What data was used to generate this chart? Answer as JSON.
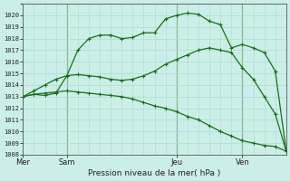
{
  "background_color": "#cceee8",
  "grid_color": "#aaddcc",
  "line_color": "#1a6e1a",
  "xlabel": "Pression niveau de la mer( hPa )",
  "ylim": [
    1008,
    1021
  ],
  "ytick_min": 1008,
  "ytick_max": 1020,
  "n_points": 25,
  "series1": [
    1013.0,
    1013.2,
    1013.1,
    1013.3,
    1014.8,
    1017.0,
    1018.0,
    1018.3,
    1018.3,
    1018.0,
    1018.1,
    1018.5,
    1018.5,
    1019.7,
    1020.0,
    1020.2,
    1020.1,
    1019.5,
    1019.2,
    1017.2,
    1017.5,
    1017.2,
    1016.8,
    1015.2,
    1008.3
  ],
  "series2": [
    1013.0,
    1013.5,
    1014.0,
    1014.5,
    1014.8,
    1014.9,
    1014.8,
    1014.7,
    1014.5,
    1014.4,
    1014.5,
    1014.8,
    1015.2,
    1015.8,
    1016.2,
    1016.6,
    1017.0,
    1017.2,
    1017.0,
    1016.8,
    1015.5,
    1014.5,
    1013.0,
    1011.5,
    1008.3
  ],
  "series3": [
    1013.0,
    1013.2,
    1013.3,
    1013.4,
    1013.5,
    1013.4,
    1013.3,
    1013.2,
    1013.1,
    1013.0,
    1012.8,
    1012.5,
    1012.2,
    1012.0,
    1011.7,
    1011.3,
    1011.0,
    1010.5,
    1010.0,
    1009.6,
    1009.2,
    1009.0,
    1008.8,
    1008.7,
    1008.3
  ],
  "vline_x": [
    4,
    14,
    20
  ],
  "xtick_positions": [
    0,
    4,
    14,
    20
  ],
  "xtick_labels": [
    "Mer",
    "Sam",
    "Jeu",
    "Ven"
  ]
}
